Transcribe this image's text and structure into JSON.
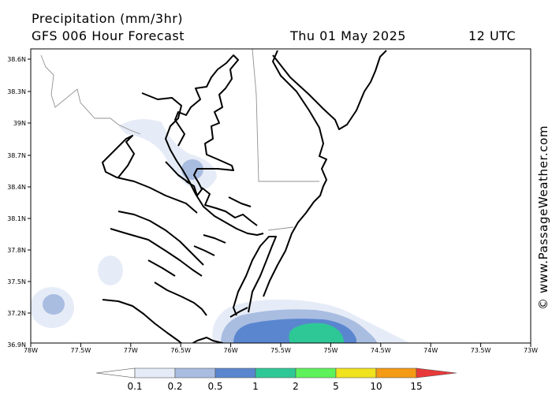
{
  "header": {
    "title": "Precipitation (mm/3hr)",
    "subtitle": "GFS 006 Hour Forecast",
    "date": "Thu 01 May 2025",
    "hour": "12 UTC"
  },
  "watermark": "© www.PassageWeather.com",
  "map": {
    "lat_labels": [
      "38.6N",
      "38.3N",
      "39N",
      "38.7N",
      "38.4N",
      "38.1N",
      "37.8N",
      "37.5N",
      "37.2N",
      "36.9N"
    ],
    "lon_labels": [
      "78W",
      "77.5W",
      "77W",
      "76.5W",
      "76W",
      "75.5W",
      "75W",
      "74.5W",
      "74W",
      "73.5W",
      "73W"
    ]
  },
  "legend": {
    "labels": [
      "0.1",
      "0.2",
      "0.5",
      "1",
      "2",
      "5",
      "10",
      "15"
    ],
    "colors": [
      "#ffffff",
      "#e6ecf7",
      "#a9bde1",
      "#5a86cf",
      "#2ec896",
      "#5ef25a",
      "#f0e21c",
      "#f49a14",
      "#e8393a"
    ]
  }
}
